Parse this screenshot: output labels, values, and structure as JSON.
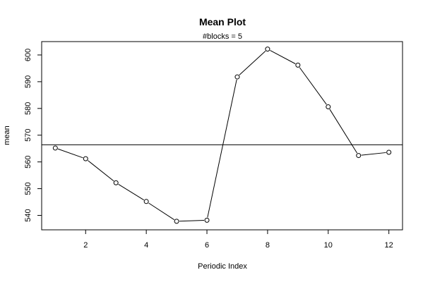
{
  "chart_data": {
    "type": "line",
    "title": "Mean Plot",
    "subtitle": "#blocks =  5",
    "xlabel": "Periodic Index",
    "ylabel": "mean",
    "x": [
      1,
      2,
      3,
      4,
      5,
      6,
      7,
      8,
      9,
      10,
      11,
      12
    ],
    "series": [
      {
        "values": [
          565.2,
          561.2,
          552.2,
          545.2,
          537.8,
          538.2,
          591.8,
          602.2,
          596.2,
          580.6,
          562.4,
          563.6
        ]
      }
    ],
    "reference_line": {
      "y": 566.4
    },
    "xlim": [
      0.55,
      12.45
    ],
    "ylim": [
      534.6,
      605.0
    ],
    "xticks": [
      2,
      4,
      6,
      8,
      10,
      12
    ],
    "yticks": [
      540,
      550,
      560,
      570,
      580,
      590,
      600
    ],
    "xtick_labels": [
      "2",
      "4",
      "6",
      "8",
      "10",
      "12"
    ],
    "ytick_labels": [
      "540",
      "550",
      "560",
      "570",
      "580",
      "590",
      "600"
    ],
    "grid": false,
    "marker": "open-circle",
    "line_color": "#000000"
  }
}
